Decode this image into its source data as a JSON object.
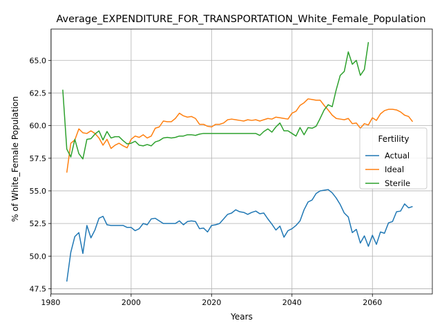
{
  "chart_data": {
    "type": "line",
    "title": "Average_EXPENDITURE_FOR_TRANSPORTATION_White_Female_Population",
    "xlabel": "Years",
    "ylabel": "% of White_Female Population",
    "xlim": [
      1980.1,
      2074.9
    ],
    "ylim": [
      47.1,
      67.4
    ],
    "xticks": [
      1980,
      2000,
      2020,
      2040,
      2060
    ],
    "xtick_labels": [
      "1980",
      "2000",
      "2020",
      "2040",
      "2060"
    ],
    "yticks": [
      47.5,
      50.0,
      52.5,
      55.0,
      57.5,
      60.0,
      62.5,
      65.0
    ],
    "ytick_labels": [
      "47.5",
      "50.0",
      "52.5",
      "55.0",
      "57.5",
      "60.0",
      "62.5",
      "65.0"
    ],
    "grid": true,
    "legend": {
      "title": "Fertility",
      "position": "right"
    },
    "series": [
      {
        "name": "Actual",
        "color": "#1f77b4",
        "points": [
          [
            1984,
            48.05
          ],
          [
            1985,
            50.3
          ],
          [
            1986,
            51.5
          ],
          [
            1987,
            51.8
          ],
          [
            1988,
            50.2
          ],
          [
            1989,
            52.35
          ],
          [
            1990,
            51.4
          ],
          [
            1991,
            52.0
          ],
          [
            1992,
            52.9
          ],
          [
            1993,
            53.05
          ],
          [
            1994,
            52.4
          ],
          [
            1995,
            52.35
          ],
          [
            1996,
            52.35
          ],
          [
            1997,
            52.35
          ],
          [
            1998,
            52.35
          ],
          [
            1999,
            52.2
          ],
          [
            2000,
            52.2
          ],
          [
            2001,
            51.95
          ],
          [
            2002,
            52.1
          ],
          [
            2003,
            52.5
          ],
          [
            2004,
            52.4
          ],
          [
            2005,
            52.85
          ],
          [
            2006,
            52.9
          ],
          [
            2007,
            52.7
          ],
          [
            2008,
            52.5
          ],
          [
            2009,
            52.5
          ],
          [
            2010,
            52.5
          ],
          [
            2011,
            52.5
          ],
          [
            2012,
            52.7
          ],
          [
            2013,
            52.4
          ],
          [
            2014,
            52.65
          ],
          [
            2015,
            52.7
          ],
          [
            2016,
            52.65
          ],
          [
            2017,
            52.1
          ],
          [
            2018,
            52.15
          ],
          [
            2019,
            51.85
          ],
          [
            2020,
            52.35
          ],
          [
            2021,
            52.4
          ],
          [
            2022,
            52.5
          ],
          [
            2023,
            52.85
          ],
          [
            2024,
            53.2
          ],
          [
            2025,
            53.3
          ],
          [
            2026,
            53.55
          ],
          [
            2027,
            53.4
          ],
          [
            2028,
            53.35
          ],
          [
            2029,
            53.2
          ],
          [
            2030,
            53.35
          ],
          [
            2031,
            53.45
          ],
          [
            2032,
            53.25
          ],
          [
            2033,
            53.3
          ],
          [
            2034,
            52.85
          ],
          [
            2035,
            52.45
          ],
          [
            2036,
            52.0
          ],
          [
            2037,
            52.3
          ],
          [
            2038,
            51.45
          ],
          [
            2039,
            51.95
          ],
          [
            2040,
            52.1
          ],
          [
            2041,
            52.35
          ],
          [
            2042,
            52.7
          ],
          [
            2043,
            53.55
          ],
          [
            2044,
            54.15
          ],
          [
            2045,
            54.3
          ],
          [
            2046,
            54.8
          ],
          [
            2047,
            55.0
          ],
          [
            2048,
            55.05
          ],
          [
            2049,
            55.1
          ],
          [
            2050,
            54.85
          ],
          [
            2051,
            54.45
          ],
          [
            2052,
            53.95
          ],
          [
            2053,
            53.3
          ],
          [
            2054,
            53.0
          ],
          [
            2055,
            51.8
          ],
          [
            2056,
            52.05
          ],
          [
            2057,
            51.0
          ],
          [
            2058,
            51.55
          ],
          [
            2059,
            50.75
          ],
          [
            2060,
            51.6
          ],
          [
            2061,
            50.9
          ],
          [
            2062,
            51.85
          ],
          [
            2063,
            51.75
          ],
          [
            2064,
            52.55
          ],
          [
            2065,
            52.65
          ],
          [
            2066,
            53.4
          ],
          [
            2067,
            53.45
          ],
          [
            2068,
            54.0
          ],
          [
            2069,
            53.7
          ],
          [
            2070,
            53.8
          ]
        ]
      },
      {
        "name": "Ideal",
        "color": "#ff7f0e",
        "points": [
          [
            1984,
            56.4
          ],
          [
            1985,
            58.65
          ],
          [
            1986,
            58.9
          ],
          [
            1987,
            59.75
          ],
          [
            1988,
            59.45
          ],
          [
            1989,
            59.4
          ],
          [
            1990,
            59.6
          ],
          [
            1991,
            59.4
          ],
          [
            1992,
            59.05
          ],
          [
            1993,
            58.5
          ],
          [
            1994,
            58.95
          ],
          [
            1995,
            58.25
          ],
          [
            1996,
            58.5
          ],
          [
            1997,
            58.65
          ],
          [
            1998,
            58.45
          ],
          [
            1999,
            58.3
          ],
          [
            2000,
            58.95
          ],
          [
            2001,
            59.2
          ],
          [
            2002,
            59.1
          ],
          [
            2003,
            59.3
          ],
          [
            2004,
            59.05
          ],
          [
            2005,
            59.2
          ],
          [
            2006,
            59.8
          ],
          [
            2007,
            59.9
          ],
          [
            2008,
            60.35
          ],
          [
            2009,
            60.3
          ],
          [
            2010,
            60.3
          ],
          [
            2011,
            60.55
          ],
          [
            2012,
            60.95
          ],
          [
            2013,
            60.75
          ],
          [
            2014,
            60.65
          ],
          [
            2015,
            60.7
          ],
          [
            2016,
            60.55
          ],
          [
            2017,
            60.1
          ],
          [
            2018,
            60.1
          ],
          [
            2019,
            59.95
          ],
          [
            2020,
            59.9
          ],
          [
            2021,
            60.1
          ],
          [
            2022,
            60.1
          ],
          [
            2023,
            60.2
          ],
          [
            2024,
            60.45
          ],
          [
            2025,
            60.5
          ],
          [
            2026,
            60.45
          ],
          [
            2027,
            60.4
          ],
          [
            2028,
            60.35
          ],
          [
            2029,
            60.45
          ],
          [
            2030,
            60.4
          ],
          [
            2031,
            60.45
          ],
          [
            2032,
            60.35
          ],
          [
            2033,
            60.45
          ],
          [
            2034,
            60.55
          ],
          [
            2035,
            60.5
          ],
          [
            2036,
            60.65
          ],
          [
            2037,
            60.6
          ],
          [
            2038,
            60.55
          ],
          [
            2039,
            60.5
          ],
          [
            2040,
            60.95
          ],
          [
            2041,
            61.1
          ],
          [
            2042,
            61.55
          ],
          [
            2043,
            61.75
          ],
          [
            2044,
            62.05
          ],
          [
            2045,
            62.0
          ],
          [
            2046,
            61.95
          ],
          [
            2047,
            61.95
          ],
          [
            2048,
            61.55
          ],
          [
            2049,
            61.2
          ],
          [
            2050,
            60.8
          ],
          [
            2051,
            60.55
          ],
          [
            2052,
            60.5
          ],
          [
            2053,
            60.45
          ],
          [
            2054,
            60.55
          ],
          [
            2055,
            60.15
          ],
          [
            2056,
            60.2
          ],
          [
            2057,
            59.8
          ],
          [
            2058,
            60.15
          ],
          [
            2059,
            60.05
          ],
          [
            2060,
            60.6
          ],
          [
            2061,
            60.4
          ],
          [
            2062,
            60.9
          ],
          [
            2063,
            61.15
          ],
          [
            2064,
            61.25
          ],
          [
            2065,
            61.25
          ],
          [
            2066,
            61.2
          ],
          [
            2067,
            61.05
          ],
          [
            2068,
            60.8
          ],
          [
            2069,
            60.7
          ],
          [
            2070,
            60.3
          ]
        ]
      },
      {
        "name": "Sterile",
        "color": "#2ca02c",
        "points": [
          [
            1983,
            62.75
          ],
          [
            1984,
            58.2
          ],
          [
            1985,
            57.6
          ],
          [
            1986,
            58.95
          ],
          [
            1987,
            57.85
          ],
          [
            1988,
            57.45
          ],
          [
            1989,
            58.95
          ],
          [
            1990,
            59.0
          ],
          [
            1991,
            59.35
          ],
          [
            1992,
            59.6
          ],
          [
            1993,
            58.9
          ],
          [
            1994,
            59.55
          ],
          [
            1995,
            59.05
          ],
          [
            1996,
            59.15
          ],
          [
            1997,
            59.15
          ],
          [
            1998,
            58.85
          ],
          [
            1999,
            58.6
          ],
          [
            2000,
            58.65
          ],
          [
            2001,
            58.8
          ],
          [
            2002,
            58.5
          ],
          [
            2003,
            58.45
          ],
          [
            2004,
            58.55
          ],
          [
            2005,
            58.45
          ],
          [
            2006,
            58.75
          ],
          [
            2007,
            58.85
          ],
          [
            2008,
            59.05
          ],
          [
            2009,
            59.1
          ],
          [
            2010,
            59.05
          ],
          [
            2011,
            59.1
          ],
          [
            2012,
            59.2
          ],
          [
            2013,
            59.2
          ],
          [
            2014,
            59.3
          ],
          [
            2015,
            59.3
          ],
          [
            2016,
            59.25
          ],
          [
            2017,
            59.35
          ],
          [
            2018,
            59.4
          ],
          [
            2019,
            59.4
          ],
          [
            2020,
            59.4
          ],
          [
            2021,
            59.4
          ],
          [
            2022,
            59.4
          ],
          [
            2023,
            59.4
          ],
          [
            2024,
            59.4
          ],
          [
            2025,
            59.4
          ],
          [
            2026,
            59.4
          ],
          [
            2027,
            59.4
          ],
          [
            2028,
            59.4
          ],
          [
            2029,
            59.4
          ],
          [
            2030,
            59.4
          ],
          [
            2031,
            59.4
          ],
          [
            2032,
            59.25
          ],
          [
            2033,
            59.55
          ],
          [
            2034,
            59.75
          ],
          [
            2035,
            59.5
          ],
          [
            2036,
            59.9
          ],
          [
            2037,
            60.2
          ],
          [
            2038,
            59.6
          ],
          [
            2039,
            59.6
          ],
          [
            2040,
            59.4
          ],
          [
            2041,
            59.2
          ],
          [
            2042,
            59.85
          ],
          [
            2043,
            59.3
          ],
          [
            2044,
            59.85
          ],
          [
            2045,
            59.8
          ],
          [
            2046,
            59.95
          ],
          [
            2047,
            60.55
          ],
          [
            2048,
            61.2
          ],
          [
            2049,
            61.6
          ],
          [
            2050,
            61.45
          ],
          [
            2051,
            62.75
          ],
          [
            2052,
            63.85
          ],
          [
            2053,
            64.15
          ],
          [
            2054,
            65.65
          ],
          [
            2055,
            64.7
          ],
          [
            2056,
            65.0
          ],
          [
            2057,
            63.85
          ],
          [
            2058,
            64.3
          ],
          [
            2059,
            66.4
          ]
        ]
      }
    ]
  }
}
